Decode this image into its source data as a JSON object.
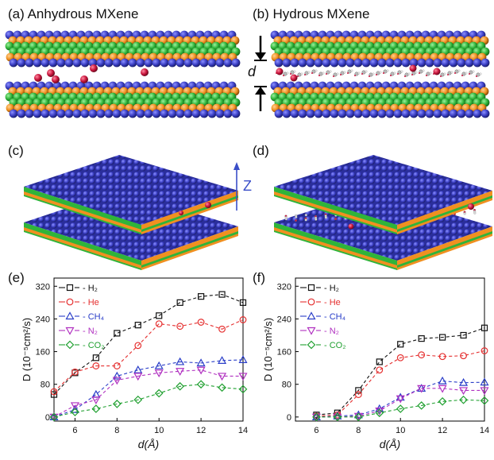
{
  "panels": {
    "a": {
      "label": "(a)",
      "title": "Anhydrous MXene"
    },
    "b": {
      "label": "(b)",
      "title": "Hydrous MXene",
      "spacing_label": "d"
    },
    "c": {
      "label": "(c)",
      "axis_label": "Z"
    },
    "d": {
      "label": "(d)"
    },
    "e": {
      "label": "(e)"
    },
    "f": {
      "label": "(f)"
    }
  },
  "colors": {
    "blue_atom": "#3a3ec4",
    "green_atom": "#2fb43a",
    "orange_atom": "#f09020",
    "red_atom": "#c8143c",
    "H2": "#111111",
    "He": "#e53030",
    "CH4": "#2a3ec8",
    "N2": "#b030c0",
    "CO2": "#20a030"
  },
  "chart_data": [
    {
      "type": "line",
      "panel": "e",
      "xlabel": "d(Å)",
      "ylabel": "D (10⁻⁵cm²/s)",
      "xlim": [
        5,
        14
      ],
      "ylim": [
        -10,
        340
      ],
      "xticks": [
        6,
        8,
        10,
        12,
        14
      ],
      "yticks": [
        0,
        80,
        160,
        240,
        320
      ],
      "legend_position": "top-left",
      "x": [
        5,
        6,
        7,
        8,
        9,
        10,
        11,
        12,
        13,
        14
      ],
      "series": [
        {
          "name": "H₂",
          "marker": "square",
          "values": [
            55,
            108,
            145,
            205,
            225,
            248,
            280,
            295,
            300,
            280
          ]
        },
        {
          "name": "He",
          "marker": "circle",
          "values": [
            62,
            110,
            125,
            125,
            175,
            228,
            222,
            232,
            215,
            238
          ]
        },
        {
          "name": "CH₄",
          "marker": "triangle-up",
          "values": [
            0,
            18,
            55,
            100,
            115,
            125,
            135,
            132,
            138,
            140
          ]
        },
        {
          "name": "N₂",
          "marker": "triangle-down",
          "values": [
            0,
            28,
            42,
            90,
            100,
            108,
            112,
            115,
            100,
            100
          ]
        },
        {
          "name": "CO₂",
          "marker": "diamond",
          "values": [
            0,
            12,
            20,
            32,
            42,
            58,
            75,
            80,
            72,
            68
          ]
        }
      ]
    },
    {
      "type": "line",
      "panel": "f",
      "xlabel": "d(Å)",
      "ylabel": "D (10⁻⁵cm²/s)",
      "xlim": [
        5,
        14
      ],
      "ylim": [
        -10,
        340
      ],
      "xticks": [
        6,
        8,
        10,
        12,
        14
      ],
      "yticks": [
        0,
        80,
        160,
        240,
        320
      ],
      "legend_position": "top-left",
      "x": [
        6,
        7,
        8,
        9,
        10,
        11,
        12,
        13,
        14
      ],
      "series": [
        {
          "name": "H₂",
          "marker": "square",
          "values": [
            5,
            10,
            65,
            135,
            178,
            192,
            195,
            200,
            218
          ]
        },
        {
          "name": "He",
          "marker": "circle",
          "values": [
            2,
            5,
            55,
            115,
            145,
            152,
            148,
            150,
            162
          ]
        },
        {
          "name": "CH₄",
          "marker": "triangle-up",
          "values": [
            0,
            2,
            5,
            20,
            48,
            70,
            88,
            84,
            85
          ]
        },
        {
          "name": "N₂",
          "marker": "triangle-down",
          "values": [
            0,
            0,
            2,
            15,
            45,
            70,
            70,
            65,
            65
          ]
        },
        {
          "name": "CO₂",
          "marker": "diamond",
          "values": [
            0,
            0,
            0,
            10,
            20,
            28,
            38,
            42,
            40
          ]
        }
      ]
    }
  ]
}
